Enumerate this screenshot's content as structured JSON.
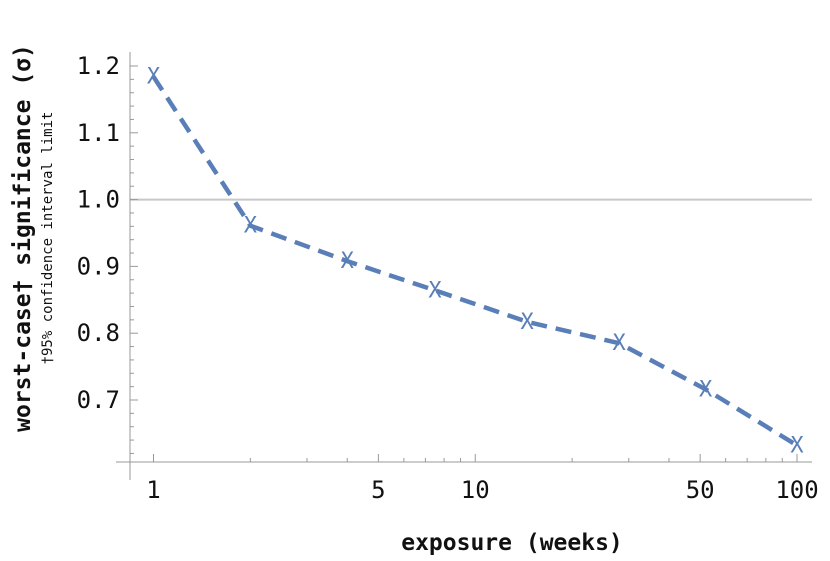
{
  "chart_data": {
    "type": "line",
    "x_scale": "log",
    "x": [
      1,
      2,
      4,
      7.5,
      14.5,
      28,
      52,
      100
    ],
    "series": [
      {
        "values": [
          1.184,
          0.961,
          0.908,
          0.864,
          0.817,
          0.785,
          0.716,
          0.632
        ],
        "color": "#5a7fb8",
        "line_style": "dashed",
        "marker": "X"
      }
    ],
    "xlabel": "exposure (weeks)",
    "ylabel": "worst-case† significance (σ)",
    "ylabel_note": "†95% confidence interval limit",
    "xlim": [
      0.9,
      110
    ],
    "ylim": [
      0.6,
      1.22
    ],
    "x_ticks": [
      1,
      5,
      10,
      50,
      100
    ],
    "x_minor_ticks": [
      2,
      3,
      4,
      6,
      7,
      8,
      9,
      20,
      30,
      40,
      60,
      70,
      80,
      90
    ],
    "y_ticks": [
      0.7,
      0.8,
      0.9,
      1.0,
      1.1,
      1.2
    ],
    "y_tick_labels": [
      "0.7",
      "0.8",
      "0.9",
      "1.0",
      "1.1",
      "1.2"
    ],
    "reference_line": {
      "y": 1.0,
      "color": "#c8c8c8"
    },
    "axis_color": "#999999",
    "grid": false
  }
}
